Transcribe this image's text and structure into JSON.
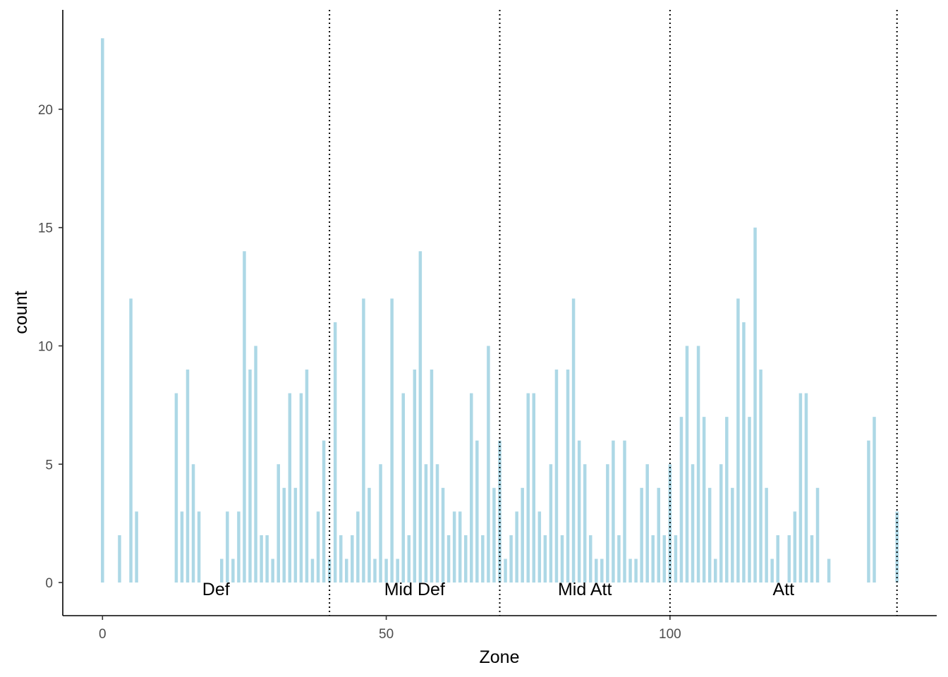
{
  "chart_data": {
    "type": "bar",
    "xlabel": "Zone",
    "ylabel": "count",
    "xlim": [
      -7,
      147
    ],
    "ylim": [
      -1.4,
      24.2
    ],
    "x_ticks": [
      0,
      50,
      100
    ],
    "y_ticks": [
      0,
      5,
      10,
      15,
      20
    ],
    "grid": false,
    "bar_color": "#ADD8E6",
    "zone_lines": [
      40,
      70,
      100,
      140
    ],
    "zone_labels": [
      {
        "label": "Def",
        "x": 20
      },
      {
        "label": "Mid Def",
        "x": 55
      },
      {
        "label": "Mid Att",
        "x": 85
      },
      {
        "label": "Att",
        "x": 120
      }
    ],
    "x": [
      0,
      3,
      5,
      6,
      13,
      14,
      15,
      16,
      17,
      21,
      22,
      23,
      24,
      25,
      26,
      27,
      28,
      29,
      30,
      31,
      32,
      33,
      34,
      35,
      36,
      37,
      38,
      39,
      40,
      41,
      42,
      43,
      44,
      45,
      46,
      47,
      48,
      49,
      50,
      51,
      52,
      53,
      54,
      55,
      56,
      57,
      58,
      59,
      60,
      61,
      62,
      63,
      64,
      65,
      66,
      67,
      68,
      69,
      70,
      71,
      72,
      73,
      74,
      75,
      76,
      77,
      78,
      79,
      80,
      81,
      82,
      83,
      84,
      85,
      86,
      87,
      88,
      89,
      90,
      91,
      92,
      93,
      94,
      95,
      96,
      97,
      98,
      99,
      100,
      101,
      102,
      103,
      104,
      105,
      106,
      107,
      108,
      109,
      110,
      111,
      112,
      113,
      114,
      115,
      116,
      117,
      118,
      119,
      121,
      122,
      123,
      124,
      125,
      126,
      128,
      135,
      136,
      140
    ],
    "values": [
      23,
      2,
      12,
      3,
      8,
      3,
      9,
      5,
      3,
      1,
      3,
      1,
      3,
      14,
      9,
      10,
      2,
      2,
      1,
      5,
      4,
      8,
      4,
      8,
      9,
      1,
      3,
      6,
      1,
      11,
      2,
      1,
      2,
      3,
      12,
      4,
      1,
      5,
      1,
      12,
      1,
      8,
      2,
      9,
      14,
      5,
      9,
      5,
      4,
      2,
      3,
      3,
      2,
      8,
      6,
      2,
      10,
      4,
      6,
      1,
      2,
      3,
      4,
      8,
      8,
      3,
      2,
      5,
      9,
      2,
      9,
      12,
      6,
      5,
      2,
      1,
      1,
      5,
      6,
      2,
      6,
      1,
      1,
      4,
      5,
      2,
      4,
      2,
      5,
      2,
      7,
      10,
      5,
      10,
      7,
      4,
      1,
      5,
      7,
      4,
      12,
      11,
      7,
      15,
      9,
      4,
      1,
      2,
      2,
      3,
      8,
      8,
      2,
      4,
      1,
      6,
      7,
      3
    ]
  }
}
